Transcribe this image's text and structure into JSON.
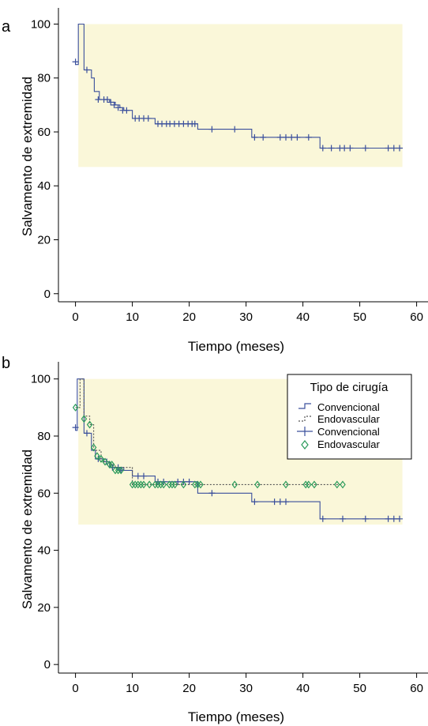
{
  "chart_data": [
    {
      "panel": "a",
      "type": "line",
      "xlabel": "Tiempo (meses)",
      "ylabel": "Salvamento de extremidad",
      "xlim": [
        -3,
        62
      ],
      "ylim": [
        -3,
        106
      ],
      "xticks": [
        "0",
        "10",
        "20",
        "30",
        "40",
        "50",
        "60"
      ],
      "yticks": [
        "0",
        "20",
        "40",
        "60",
        "80",
        "100"
      ],
      "colors": {
        "convencional": "#3a4f9c",
        "endovascular": "#555555",
        "censor_endovascular": "#2a9a5a",
        "background": "#fdfbe8",
        "ci_band": "#faf7d9"
      },
      "ci_band": {
        "x": [
          0.5,
          57.5
        ],
        "y": [
          47,
          100
        ]
      },
      "series": [
        {
          "name": "",
          "step": [
            [
              0,
              85
            ],
            [
              0.5,
              85
            ],
            [
              0.5,
              100
            ],
            [
              1.5,
              100
            ],
            [
              1.5,
              83
            ],
            [
              2.8,
              83
            ],
            [
              2.8,
              80
            ],
            [
              3.3,
              80
            ],
            [
              3.3,
              75
            ],
            [
              4.2,
              75
            ],
            [
              4.2,
              72
            ],
            [
              6,
              72
            ],
            [
              6,
              71
            ],
            [
              7,
              71
            ],
            [
              7,
              70
            ],
            [
              7.8,
              70
            ],
            [
              7.8,
              69
            ],
            [
              8.5,
              69
            ],
            [
              8.5,
              68
            ],
            [
              10,
              68
            ],
            [
              10,
              65
            ],
            [
              14,
              65
            ],
            [
              14,
              63
            ],
            [
              21.5,
              63
            ],
            [
              21.5,
              61
            ],
            [
              31,
              61
            ],
            [
              31,
              58
            ],
            [
              43,
              58
            ],
            [
              43,
              54
            ],
            [
              57,
              54
            ]
          ],
          "censored": [
            [
              0,
              86
            ],
            [
              2,
              83
            ],
            [
              4,
              72
            ],
            [
              5,
              72
            ],
            [
              5.6,
              72
            ],
            [
              6.2,
              71
            ],
            [
              6.8,
              70
            ],
            [
              7.5,
              69
            ],
            [
              8.3,
              68
            ],
            [
              9,
              68
            ],
            [
              10.5,
              65
            ],
            [
              11.2,
              65
            ],
            [
              12,
              65
            ],
            [
              12.8,
              65
            ],
            [
              14.5,
              63
            ],
            [
              15.2,
              63
            ],
            [
              16,
              63
            ],
            [
              16.6,
              63
            ],
            [
              17.4,
              63
            ],
            [
              18.2,
              63
            ],
            [
              19,
              63
            ],
            [
              19.8,
              63
            ],
            [
              20.5,
              63
            ],
            [
              21,
              63
            ],
            [
              24,
              61
            ],
            [
              28,
              61
            ],
            [
              31.5,
              58
            ],
            [
              33,
              58
            ],
            [
              36,
              58
            ],
            [
              37,
              58
            ],
            [
              38,
              58
            ],
            [
              39,
              58
            ],
            [
              41,
              58
            ],
            [
              43.5,
              54
            ],
            [
              45,
              54
            ],
            [
              46.5,
              54
            ],
            [
              47.3,
              54
            ],
            [
              48.3,
              54
            ],
            [
              51,
              54
            ],
            [
              55,
              54
            ],
            [
              56,
              54
            ],
            [
              57,
              54
            ]
          ]
        }
      ]
    },
    {
      "panel": "b",
      "type": "line",
      "xlabel": "Tiempo (meses)",
      "ylabel": "Salvamento de extremidad",
      "xlim": [
        -3,
        62
      ],
      "ylim": [
        -3,
        106
      ],
      "xticks": [
        "0",
        "10",
        "20",
        "30",
        "40",
        "50",
        "60"
      ],
      "yticks": [
        "0",
        "20",
        "40",
        "60",
        "80",
        "100"
      ],
      "colors": {
        "convencional": "#3a4f9c",
        "endovascular": "#555555",
        "censor_endovascular": "#2a9a5a",
        "background": "#fdfbe8",
        "ci_band": "#faf7d9"
      },
      "ci_band": {
        "x": [
          0.5,
          57.5
        ],
        "y": [
          49,
          100
        ]
      },
      "legend": {
        "title": "Tipo de cirugía",
        "position": "top-right",
        "entries": [
          "Convencional",
          "Endovascular",
          "Convencional",
          "Endovascular"
        ]
      },
      "series": [
        {
          "name": "Convencional",
          "step": [
            [
              0,
              82
            ],
            [
              0.3,
              82
            ],
            [
              0.3,
              100
            ],
            [
              1.5,
              100
            ],
            [
              1.5,
              81
            ],
            [
              2.8,
              81
            ],
            [
              2.8,
              75
            ],
            [
              3.5,
              75
            ],
            [
              3.5,
              72
            ],
            [
              5,
              72
            ],
            [
              5,
              71
            ],
            [
              6,
              71
            ],
            [
              6,
              69
            ],
            [
              8.5,
              69
            ],
            [
              8.5,
              68
            ],
            [
              10,
              68
            ],
            [
              10,
              66
            ],
            [
              14,
              66
            ],
            [
              14,
              64
            ],
            [
              21.5,
              64
            ],
            [
              21.5,
              60
            ],
            [
              31,
              60
            ],
            [
              31,
              57
            ],
            [
              43,
              57
            ],
            [
              43,
              51
            ],
            [
              57,
              51
            ]
          ],
          "censored": [
            [
              0,
              83
            ],
            [
              2,
              81
            ],
            [
              4,
              72
            ],
            [
              5.5,
              71
            ],
            [
              6.5,
              69
            ],
            [
              7.5,
              69
            ],
            [
              8,
              68
            ],
            [
              11,
              66
            ],
            [
              12,
              66
            ],
            [
              14.5,
              64
            ],
            [
              15.5,
              64
            ],
            [
              18,
              64
            ],
            [
              19,
              64
            ],
            [
              20,
              64
            ],
            [
              24,
              60
            ],
            [
              31.5,
              57
            ],
            [
              35,
              57
            ],
            [
              36,
              57
            ],
            [
              37,
              57
            ],
            [
              43.5,
              51
            ],
            [
              47,
              51
            ],
            [
              51,
              51
            ],
            [
              55,
              51
            ],
            [
              56,
              51
            ],
            [
              57,
              51
            ]
          ]
        },
        {
          "name": "Endovascular",
          "step": [
            [
              0,
              90
            ],
            [
              0.8,
              90
            ],
            [
              0.8,
              100
            ],
            [
              1.5,
              100
            ],
            [
              1.5,
              87
            ],
            [
              2.5,
              87
            ],
            [
              2.5,
              84
            ],
            [
              3.2,
              84
            ],
            [
              3.2,
              75
            ],
            [
              4.5,
              75
            ],
            [
              4.5,
              71
            ],
            [
              6,
              71
            ],
            [
              6,
              70
            ],
            [
              7,
              70
            ],
            [
              7,
              69
            ],
            [
              10,
              69
            ],
            [
              10,
              63
            ],
            [
              47,
              63
            ]
          ],
          "censored": [
            [
              0,
              90
            ],
            [
              1.5,
              86
            ],
            [
              2.5,
              84
            ],
            [
              3.2,
              76
            ],
            [
              3.8,
              73
            ],
            [
              4.5,
              72
            ],
            [
              5.2,
              71
            ],
            [
              6,
              70
            ],
            [
              6.4,
              70
            ],
            [
              7,
              68
            ],
            [
              7.5,
              68
            ],
            [
              8,
              68
            ],
            [
              10,
              63
            ],
            [
              10.5,
              63
            ],
            [
              11,
              63
            ],
            [
              11.5,
              63
            ],
            [
              12,
              63
            ],
            [
              13,
              63
            ],
            [
              14,
              63
            ],
            [
              14.5,
              63
            ],
            [
              15,
              63
            ],
            [
              15.5,
              63
            ],
            [
              16.5,
              63
            ],
            [
              17,
              63
            ],
            [
              17.5,
              63
            ],
            [
              19,
              63
            ],
            [
              21,
              63
            ],
            [
              21.5,
              63
            ],
            [
              22,
              63
            ],
            [
              28,
              63
            ],
            [
              32,
              63
            ],
            [
              37,
              63
            ],
            [
              40.5,
              63
            ],
            [
              41,
              63
            ],
            [
              42,
              63
            ],
            [
              46,
              63
            ],
            [
              47,
              63
            ]
          ]
        }
      ]
    }
  ],
  "panels": [
    {
      "letter": "a"
    },
    {
      "letter": "b"
    }
  ]
}
